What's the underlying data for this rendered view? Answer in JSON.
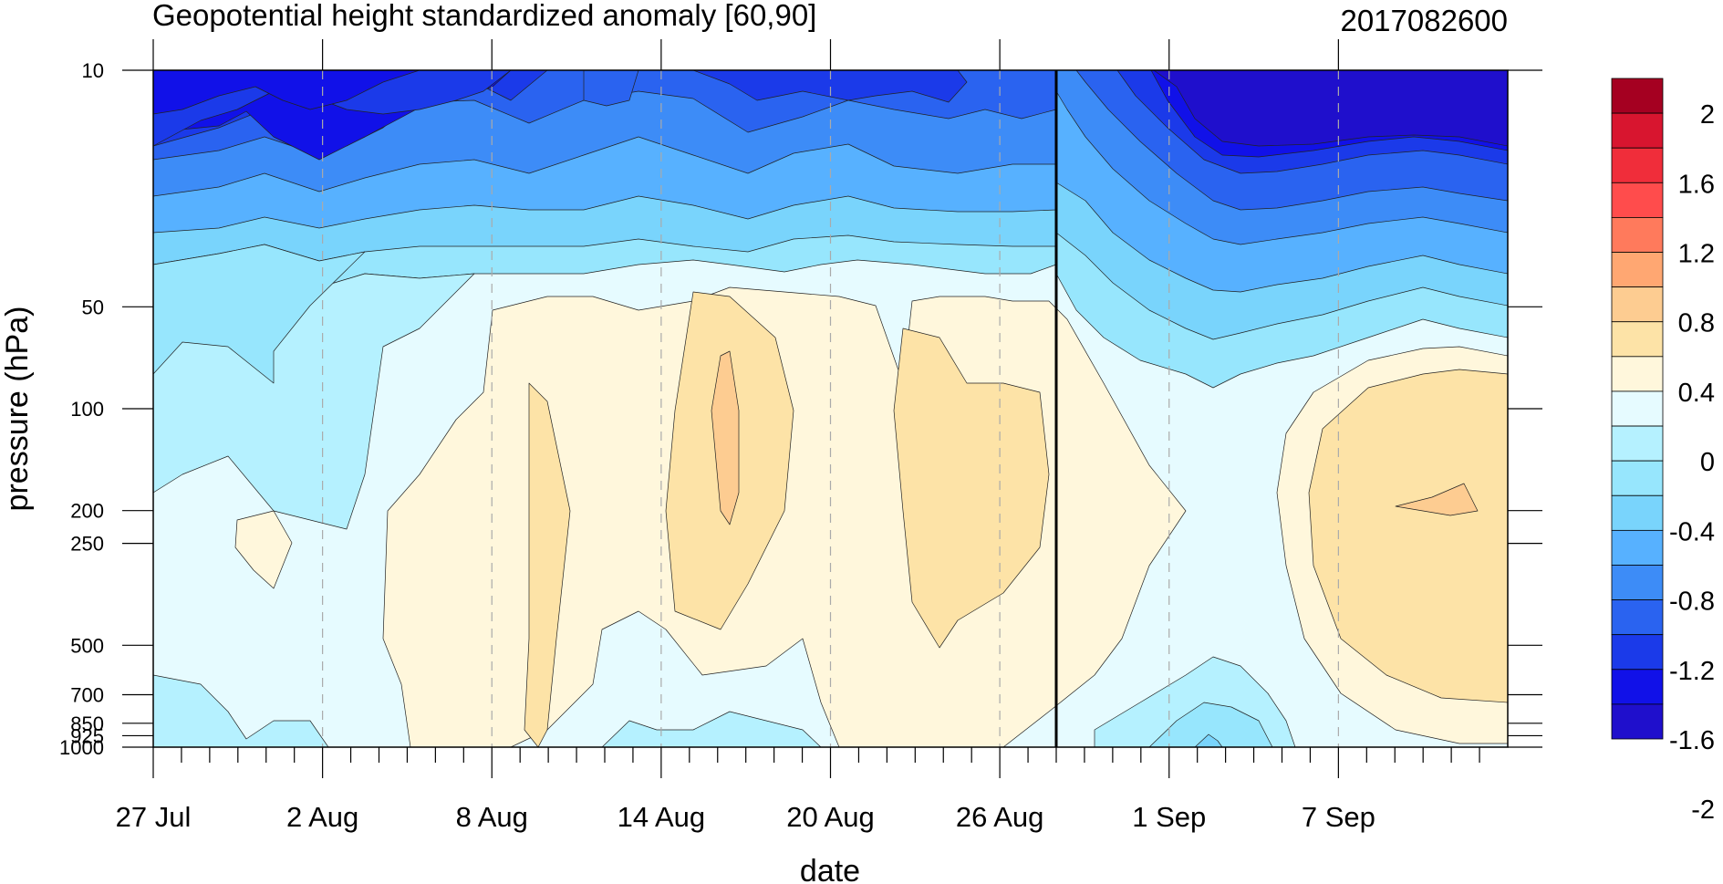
{
  "chart_data": {
    "type": "heatmap",
    "title": "Geopotential height standardized anomaly [60,90]",
    "date_label": "2017082600",
    "xlabel": "date",
    "ylabel": "pressure (hPa)",
    "x_ticks": [
      "27 Jul",
      "2 Aug",
      "8 Aug",
      "14 Aug",
      "20 Aug",
      "26 Aug",
      "1 Sep",
      "7 Sep"
    ],
    "y_ticks": [
      "10",
      "50",
      "100",
      "200",
      "250",
      "500",
      "700",
      "850",
      "925",
      "1000"
    ],
    "y_scale": "log-pressure",
    "x_range": [
      "27 Jul",
      "11 Sep"
    ],
    "current_date_line": "26 Aug",
    "colorbar": {
      "labels": [
        "2",
        "1.6",
        "1.2",
        "0.8",
        "0.4",
        "0",
        "-0.4",
        "-0.8",
        "-1.2",
        "-1.6",
        "-2"
      ],
      "colors": [
        "#a50021",
        "#d8152f",
        "#f02d3a",
        "#ff4c4c",
        "#ff7a5c",
        "#ffa772",
        "#fdcc91",
        "#fde3a7",
        "#fff7dc",
        "#e6fbff",
        "#b5f1ff",
        "#97e6fd",
        "#79d4fc",
        "#57b1ff",
        "#3d8cf7",
        "#2a63f0",
        "#1b3ae9",
        "#1111e8",
        "#1f0fcc"
      ]
    }
  }
}
